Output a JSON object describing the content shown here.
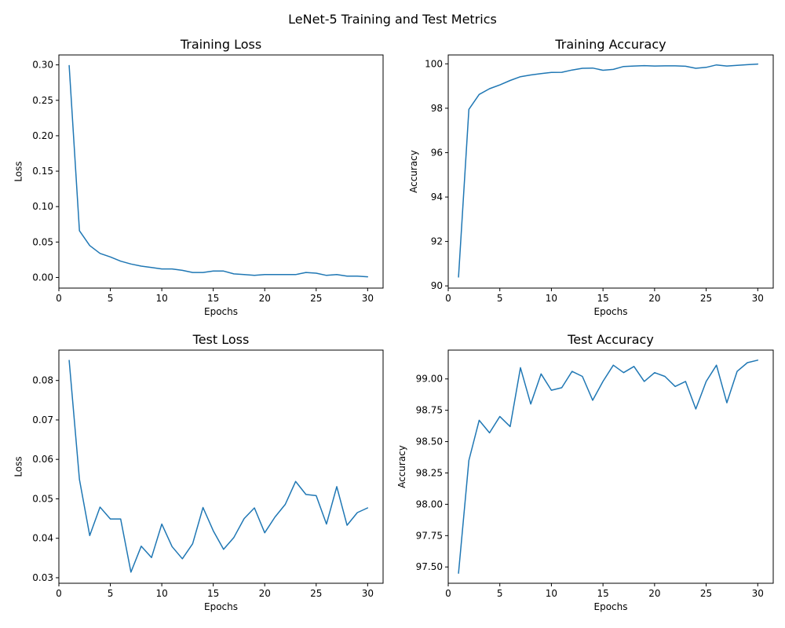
{
  "figure": {
    "title": "LeNet-5 Training and Test Metrics",
    "line_color": "#1f77b4"
  },
  "chart_data": [
    {
      "type": "line",
      "title": "Training Loss",
      "xlabel": "Epochs",
      "ylabel": "Loss",
      "xlim": [
        0,
        31.5
      ],
      "ylim": [
        -0.015,
        0.314
      ],
      "xticks": [
        0,
        5,
        10,
        15,
        20,
        25,
        30
      ],
      "xtick_labels": [
        "0",
        "5",
        "10",
        "15",
        "20",
        "25",
        "30"
      ],
      "yticks": [
        0,
        0.05,
        0.1,
        0.15,
        0.2,
        0.25,
        0.3
      ],
      "ytick_labels": [
        "0.00",
        "0.05",
        "0.10",
        "0.15",
        "0.20",
        "0.25",
        "0.30"
      ],
      "grid": false,
      "series": [
        {
          "x": [
            1,
            2,
            3,
            4,
            5,
            6,
            7,
            8,
            9,
            10,
            11,
            12,
            13,
            14,
            15,
            16,
            17,
            18,
            19,
            20,
            21,
            22,
            23,
            24,
            25,
            26,
            27,
            28,
            29,
            30
          ],
          "values": [
            0.299,
            0.066,
            0.045,
            0.034,
            0.029,
            0.023,
            0.019,
            0.016,
            0.014,
            0.012,
            0.012,
            0.01,
            0.007,
            0.007,
            0.009,
            0.009,
            0.005,
            0.004,
            0.003,
            0.004,
            0.004,
            0.004,
            0.004,
            0.007,
            0.006,
            0.003,
            0.004,
            0.002,
            0.002,
            0.001
          ]
        }
      ]
    },
    {
      "type": "line",
      "title": "Training Accuracy",
      "xlabel": "Epochs",
      "ylabel": "Accuracy",
      "xlim": [
        0,
        31.5
      ],
      "ylim": [
        89.9,
        100.4
      ],
      "xticks": [
        0,
        5,
        10,
        15,
        20,
        25,
        30
      ],
      "xtick_labels": [
        "0",
        "5",
        "10",
        "15",
        "20",
        "25",
        "30"
      ],
      "yticks": [
        90,
        92,
        94,
        96,
        98,
        100
      ],
      "ytick_labels": [
        "90",
        "92",
        "94",
        "96",
        "98",
        "100"
      ],
      "grid": false,
      "series": [
        {
          "x": [
            1,
            2,
            3,
            4,
            5,
            6,
            7,
            8,
            9,
            10,
            11,
            12,
            13,
            14,
            15,
            16,
            17,
            18,
            19,
            20,
            21,
            22,
            23,
            24,
            25,
            26,
            27,
            28,
            29,
            30
          ],
          "values": [
            90.4,
            97.95,
            98.62,
            98.88,
            99.05,
            99.25,
            99.42,
            99.5,
            99.56,
            99.61,
            99.62,
            99.72,
            99.8,
            99.81,
            99.71,
            99.75,
            99.88,
            99.9,
            99.92,
            99.9,
            99.91,
            99.91,
            99.89,
            99.8,
            99.84,
            99.95,
            99.9,
            99.93,
            99.96,
            99.99
          ]
        }
      ]
    },
    {
      "type": "line",
      "title": "Test Loss",
      "xlabel": "Epochs",
      "ylabel": "Loss",
      "xlim": [
        0,
        31.5
      ],
      "ylim": [
        0.0286,
        0.0877
      ],
      "xticks": [
        0,
        5,
        10,
        15,
        20,
        25,
        30
      ],
      "xtick_labels": [
        "0",
        "5",
        "10",
        "15",
        "20",
        "25",
        "30"
      ],
      "yticks": [
        0.03,
        0.04,
        0.05,
        0.06,
        0.07,
        0.08
      ],
      "ytick_labels": [
        "0.03",
        "0.04",
        "0.05",
        "0.06",
        "0.07",
        "0.08"
      ],
      "grid": false,
      "series": [
        {
          "x": [
            1,
            2,
            3,
            4,
            5,
            6,
            7,
            8,
            9,
            10,
            11,
            12,
            13,
            14,
            15,
            16,
            17,
            18,
            19,
            20,
            21,
            22,
            23,
            24,
            25,
            26,
            27,
            28,
            29,
            30
          ],
          "values": [
            0.0851,
            0.0549,
            0.0407,
            0.0479,
            0.0449,
            0.0449,
            0.0314,
            0.038,
            0.0351,
            0.0436,
            0.0379,
            0.0348,
            0.0386,
            0.0478,
            0.0419,
            0.0372,
            0.0402,
            0.045,
            0.0477,
            0.0414,
            0.0454,
            0.0486,
            0.0544,
            0.0511,
            0.0508,
            0.0436,
            0.0531,
            0.0433,
            0.0465,
            0.0477
          ]
        }
      ]
    },
    {
      "type": "line",
      "title": "Test Accuracy",
      "xlabel": "Epochs",
      "ylabel": "Accuracy",
      "xlim": [
        0,
        31.5
      ],
      "ylim": [
        97.37,
        99.23
      ],
      "xticks": [
        0,
        5,
        10,
        15,
        20,
        25,
        30
      ],
      "xtick_labels": [
        "0",
        "5",
        "10",
        "15",
        "20",
        "25",
        "30"
      ],
      "yticks": [
        97.5,
        97.75,
        98.0,
        98.25,
        98.5,
        98.75,
        99.0
      ],
      "ytick_labels": [
        "97.50",
        "97.75",
        "98.00",
        "98.25",
        "98.50",
        "98.75",
        "99.00"
      ],
      "grid": false,
      "series": [
        {
          "x": [
            1,
            2,
            3,
            4,
            5,
            6,
            7,
            8,
            9,
            10,
            11,
            12,
            13,
            14,
            15,
            16,
            17,
            18,
            19,
            20,
            21,
            22,
            23,
            24,
            25,
            26,
            27,
            28,
            29,
            30
          ],
          "values": [
            97.45,
            98.35,
            98.67,
            98.57,
            98.7,
            98.62,
            99.09,
            98.8,
            99.04,
            98.91,
            98.93,
            99.06,
            99.02,
            98.83,
            98.98,
            99.11,
            99.05,
            99.1,
            98.98,
            99.05,
            99.02,
            98.94,
            98.98,
            98.76,
            98.98,
            99.11,
            98.81,
            99.06,
            99.13,
            99.15
          ]
        }
      ]
    }
  ]
}
